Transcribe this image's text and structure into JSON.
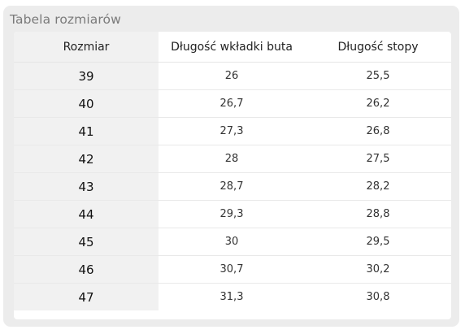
{
  "panel": {
    "title": "Tabela rozmiarów"
  },
  "table": {
    "headers": [
      "Rozmiar",
      "Długość wkładki buta",
      "Długość stopy"
    ],
    "rows": [
      {
        "size": "39",
        "insole": "26",
        "foot": "25,5"
      },
      {
        "size": "40",
        "insole": "26,7",
        "foot": "26,2"
      },
      {
        "size": "41",
        "insole": "27,3",
        "foot": "26,8"
      },
      {
        "size": "42",
        "insole": "28",
        "foot": "27,5"
      },
      {
        "size": "43",
        "insole": "28,7",
        "foot": "28,2"
      },
      {
        "size": "44",
        "insole": "29,3",
        "foot": "28,8"
      },
      {
        "size": "45",
        "insole": "30",
        "foot": "29,5"
      },
      {
        "size": "46",
        "insole": "30,7",
        "foot": "30,2"
      },
      {
        "size": "47",
        "insole": "31,3",
        "foot": "30,8"
      }
    ]
  }
}
